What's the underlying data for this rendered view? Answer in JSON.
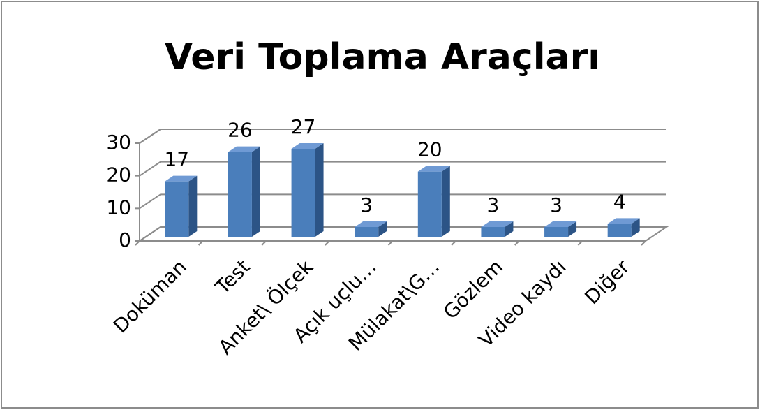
{
  "chart_data": {
    "type": "bar3d",
    "title": "Veri Toplama Araçları",
    "categories": [
      "Doküman",
      "Test",
      "Anket\\ Ölçek",
      "Açık uçlu…",
      "Mülakat\\G…",
      "Gözlem",
      "Video kaydı",
      "Diğer"
    ],
    "values": [
      17,
      26,
      27,
      3,
      20,
      3,
      3,
      4
    ],
    "color": "#4a7ebb",
    "ylim": [
      0,
      30
    ],
    "yticks": [
      0,
      10,
      20,
      30
    ],
    "grid": true
  }
}
